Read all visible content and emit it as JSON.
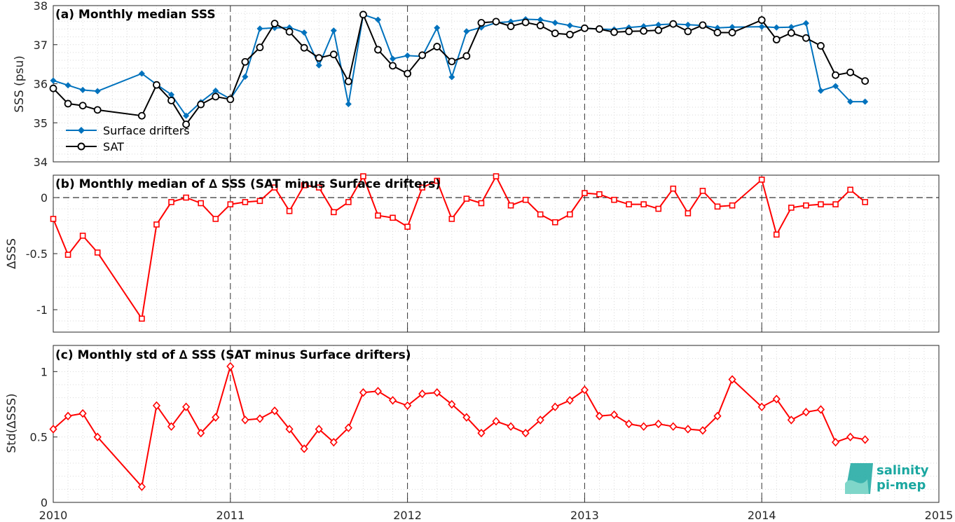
{
  "chart_data": [
    {
      "type": "line",
      "title": "(a) Monthly median SSS",
      "xlabel": "",
      "ylabel": "SSS (psu)",
      "xlim": [
        2010,
        2015
      ],
      "ylim": [
        34,
        38
      ],
      "yticks": [
        "34",
        "35",
        "36",
        "37",
        "38"
      ],
      "grid": true,
      "legend": "bottom-left",
      "series": [
        {
          "name": "Surface drifters",
          "color": "#0072bd",
          "marker": "diamond",
          "x": [
            "2010-01",
            "2010-02",
            "2010-03",
            "2010-04",
            "2010-07",
            "2010-08",
            "2010-09",
            "2010-10",
            "2010-11",
            "2010-12",
            "2011-01",
            "2011-02",
            "2011-03",
            "2011-04",
            "2011-05",
            "2011-06",
            "2011-07",
            "2011-08",
            "2011-09",
            "2011-10",
            "2011-11",
            "2011-12",
            "2012-01",
            "2012-02",
            "2012-03",
            "2012-04",
            "2012-05",
            "2012-06",
            "2012-07",
            "2012-08",
            "2012-09",
            "2012-10",
            "2012-11",
            "2012-12",
            "2013-01",
            "2013-02",
            "2013-03",
            "2013-04",
            "2013-05",
            "2013-06",
            "2013-07",
            "2013-08",
            "2013-09",
            "2013-10",
            "2013-11",
            "2014-01",
            "2014-02",
            "2014-03",
            "2014-04",
            "2014-05",
            "2014-06",
            "2014-07",
            "2014-08"
          ],
          "values": [
            36.08,
            35.96,
            35.84,
            35.81,
            36.26,
            35.98,
            35.72,
            35.18,
            35.53,
            35.82,
            35.61,
            36.18,
            37.41,
            37.43,
            37.44,
            37.31,
            36.47,
            37.36,
            35.48,
            37.77,
            37.64,
            36.64,
            36.72,
            36.7,
            37.43,
            36.17,
            37.34,
            37.44,
            37.56,
            37.59,
            37.65,
            37.64,
            37.56,
            37.49,
            37.42,
            37.4,
            37.39,
            37.44,
            37.47,
            37.51,
            37.53,
            37.51,
            37.49,
            37.43,
            37.45,
            37.46,
            37.44,
            37.45,
            37.55,
            35.82,
            35.94,
            35.54,
            35.54
          ]
        },
        {
          "name": "SAT",
          "color": "#000000",
          "marker": "circle",
          "x": [
            "2010-01",
            "2010-02",
            "2010-03",
            "2010-04",
            "2010-07",
            "2010-08",
            "2010-09",
            "2010-10",
            "2010-11",
            "2010-12",
            "2011-01",
            "2011-02",
            "2011-03",
            "2011-04",
            "2011-05",
            "2011-06",
            "2011-07",
            "2011-08",
            "2011-09",
            "2011-10",
            "2011-11",
            "2011-12",
            "2012-01",
            "2012-02",
            "2012-03",
            "2012-04",
            "2012-05",
            "2012-06",
            "2012-07",
            "2012-08",
            "2012-09",
            "2012-10",
            "2012-11",
            "2012-12",
            "2013-01",
            "2013-02",
            "2013-03",
            "2013-04",
            "2013-05",
            "2013-06",
            "2013-07",
            "2013-08",
            "2013-09",
            "2013-10",
            "2013-11",
            "2014-01",
            "2014-02",
            "2014-03",
            "2014-04",
            "2014-05",
            "2014-06",
            "2014-07",
            "2014-08"
          ],
          "values": [
            35.88,
            35.49,
            35.44,
            35.33,
            35.18,
            35.97,
            35.57,
            34.96,
            35.47,
            35.67,
            35.6,
            36.56,
            36.93,
            37.54,
            37.33,
            36.92,
            36.66,
            36.75,
            36.06,
            37.77,
            36.87,
            36.46,
            36.26,
            36.73,
            36.95,
            36.57,
            36.71,
            37.56,
            37.59,
            37.47,
            37.57,
            37.49,
            37.29,
            37.26,
            37.42,
            37.4,
            37.32,
            37.34,
            37.35,
            37.37,
            37.53,
            37.34,
            37.5,
            37.31,
            37.31,
            37.63,
            37.13,
            37.3,
            37.17,
            36.97,
            36.22,
            36.29,
            36.07
          ]
        }
      ]
    },
    {
      "type": "line",
      "title": "(b) Monthly median of ∆ SSS (SAT minus Surface drifters)",
      "xlabel": "",
      "ylabel": "∆SSS",
      "xlim": [
        2010,
        2015
      ],
      "ylim": [
        -1.2,
        0.2
      ],
      "yticks": [
        "-1",
        "-0.5",
        "0"
      ],
      "grid": true,
      "series": [
        {
          "color": "#ff0000",
          "marker": "square",
          "x": [
            "2010-01",
            "2010-02",
            "2010-03",
            "2010-04",
            "2010-07",
            "2010-08",
            "2010-09",
            "2010-10",
            "2010-11",
            "2010-12",
            "2011-01",
            "2011-02",
            "2011-03",
            "2011-04",
            "2011-05",
            "2011-06",
            "2011-07",
            "2011-08",
            "2011-09",
            "2011-10",
            "2011-11",
            "2011-12",
            "2012-01",
            "2012-02",
            "2012-03",
            "2012-04",
            "2012-05",
            "2012-06",
            "2012-07",
            "2012-08",
            "2012-09",
            "2012-10",
            "2012-11",
            "2012-12",
            "2013-01",
            "2013-02",
            "2013-03",
            "2013-04",
            "2013-05",
            "2013-06",
            "2013-07",
            "2013-08",
            "2013-09",
            "2013-10",
            "2013-11",
            "2014-01",
            "2014-02",
            "2014-03",
            "2014-04",
            "2014-05",
            "2014-06",
            "2014-07",
            "2014-08"
          ],
          "values": [
            -0.19,
            -0.51,
            -0.34,
            -0.49,
            -1.08,
            -0.24,
            -0.04,
            0.0,
            -0.05,
            -0.19,
            -0.06,
            -0.04,
            -0.03,
            0.09,
            -0.12,
            0.11,
            0.09,
            -0.13,
            -0.04,
            0.19,
            -0.16,
            -0.18,
            -0.26,
            0.09,
            0.15,
            -0.19,
            -0.01,
            -0.05,
            0.19,
            -0.07,
            -0.02,
            -0.15,
            -0.22,
            -0.15,
            0.04,
            0.03,
            -0.02,
            -0.06,
            -0.06,
            -0.1,
            0.08,
            -0.14,
            0.06,
            -0.08,
            -0.07,
            0.16,
            -0.33,
            -0.09,
            -0.07,
            -0.06,
            -0.06,
            0.07,
            -0.04
          ]
        }
      ]
    },
    {
      "type": "line",
      "title": "(c) Monthly std of ∆ SSS (SAT minus Surface drifters)",
      "xlabel": "",
      "ylabel": "Std(∆SSS)",
      "xlim": [
        2010,
        2015
      ],
      "ylim": [
        0,
        1.2
      ],
      "yticks": [
        "0",
        "0.5",
        "1"
      ],
      "xticks": [
        "2010",
        "2011",
        "2012",
        "2013",
        "2014",
        "2015"
      ],
      "grid": true,
      "series": [
        {
          "color": "#ff0000",
          "marker": "diamond",
          "x": [
            "2010-01",
            "2010-02",
            "2010-03",
            "2010-04",
            "2010-07",
            "2010-08",
            "2010-09",
            "2010-10",
            "2010-11",
            "2010-12",
            "2011-01",
            "2011-02",
            "2011-03",
            "2011-04",
            "2011-05",
            "2011-06",
            "2011-07",
            "2011-08",
            "2011-09",
            "2011-10",
            "2011-11",
            "2011-12",
            "2012-01",
            "2012-02",
            "2012-03",
            "2012-04",
            "2012-05",
            "2012-06",
            "2012-07",
            "2012-08",
            "2012-09",
            "2012-10",
            "2012-11",
            "2012-12",
            "2013-01",
            "2013-02",
            "2013-03",
            "2013-04",
            "2013-05",
            "2013-06",
            "2013-07",
            "2013-08",
            "2013-09",
            "2013-10",
            "2013-11",
            "2014-01",
            "2014-02",
            "2014-03",
            "2014-04",
            "2014-05",
            "2014-06",
            "2014-07",
            "2014-08"
          ],
          "values": [
            0.56,
            0.66,
            0.68,
            0.5,
            0.12,
            0.74,
            0.58,
            0.73,
            0.53,
            0.65,
            1.04,
            0.63,
            0.64,
            0.7,
            0.56,
            0.41,
            0.56,
            0.46,
            0.57,
            0.84,
            0.85,
            0.78,
            0.74,
            0.83,
            0.84,
            0.75,
            0.65,
            0.53,
            0.62,
            0.58,
            0.53,
            0.63,
            0.73,
            0.78,
            0.86,
            0.66,
            0.67,
            0.6,
            0.58,
            0.6,
            0.58,
            0.56,
            0.55,
            0.66,
            0.94,
            0.73,
            0.79,
            0.63,
            0.69,
            0.71,
            0.46,
            0.5,
            0.48
          ]
        }
      ]
    }
  ],
  "logo": {
    "line1": "salinity",
    "line2": "pi-mep"
  },
  "colors": {
    "drifters": "#0072bd",
    "sat": "#000000",
    "delta": "#ff0000",
    "logo": "#1aa7a0"
  }
}
